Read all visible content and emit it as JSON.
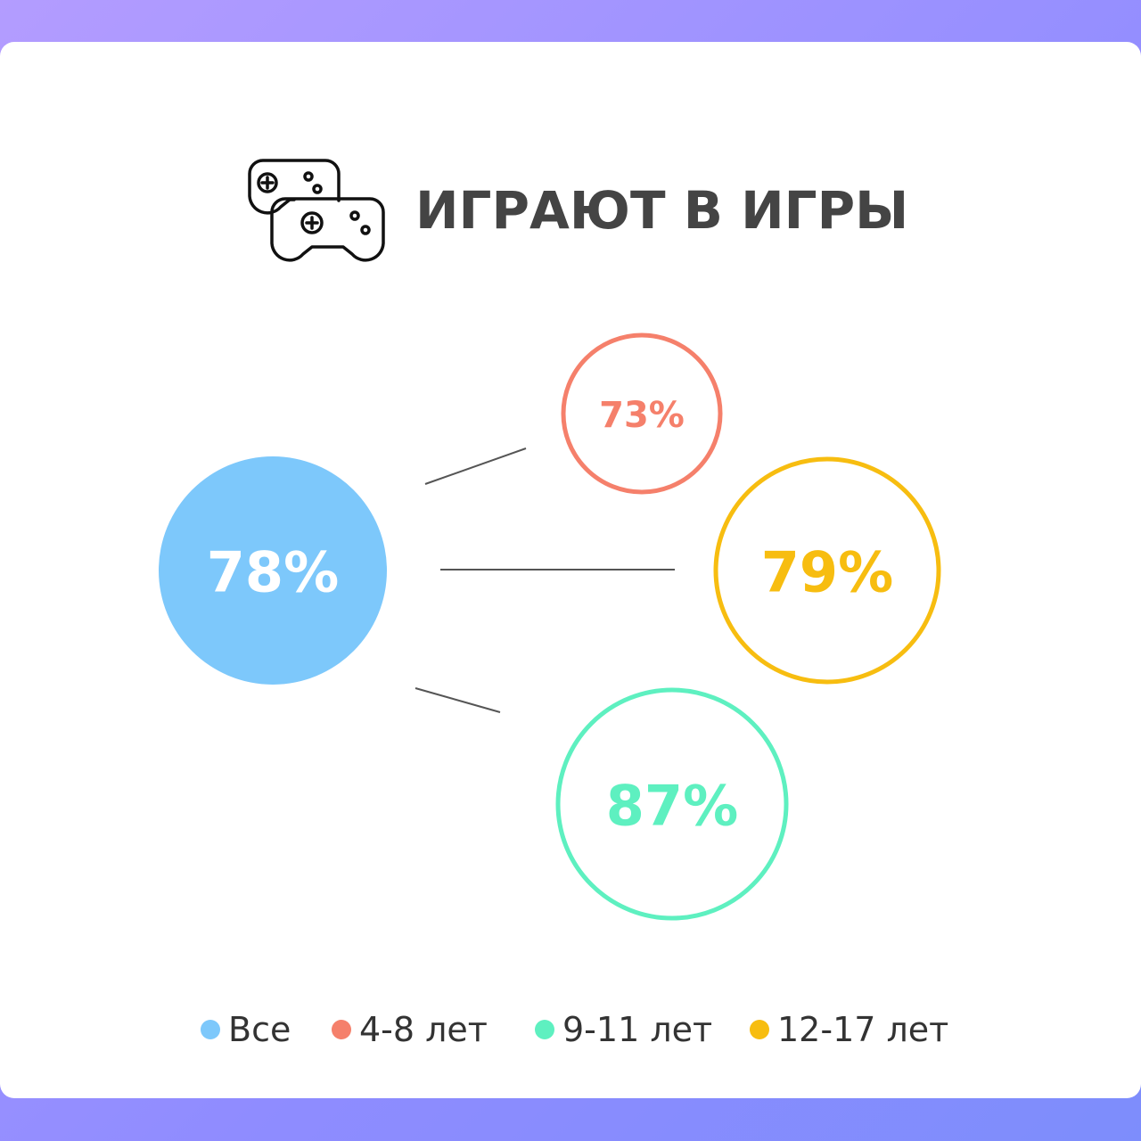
{
  "chart_data": {
    "type": "circles",
    "title": "ИГРАЮТ В ИГРЫ",
    "categories": [
      "Все",
      "4-8 лет",
      "9-11 лет",
      "12-17 лет"
    ],
    "values": [
      78,
      73,
      87,
      79
    ],
    "value_labels": [
      "78%",
      "73%",
      "87%",
      "79%"
    ],
    "colors": [
      "#7dc8fb",
      "#f5806b",
      "#5ef0c0",
      "#f7bd10"
    ]
  }
}
